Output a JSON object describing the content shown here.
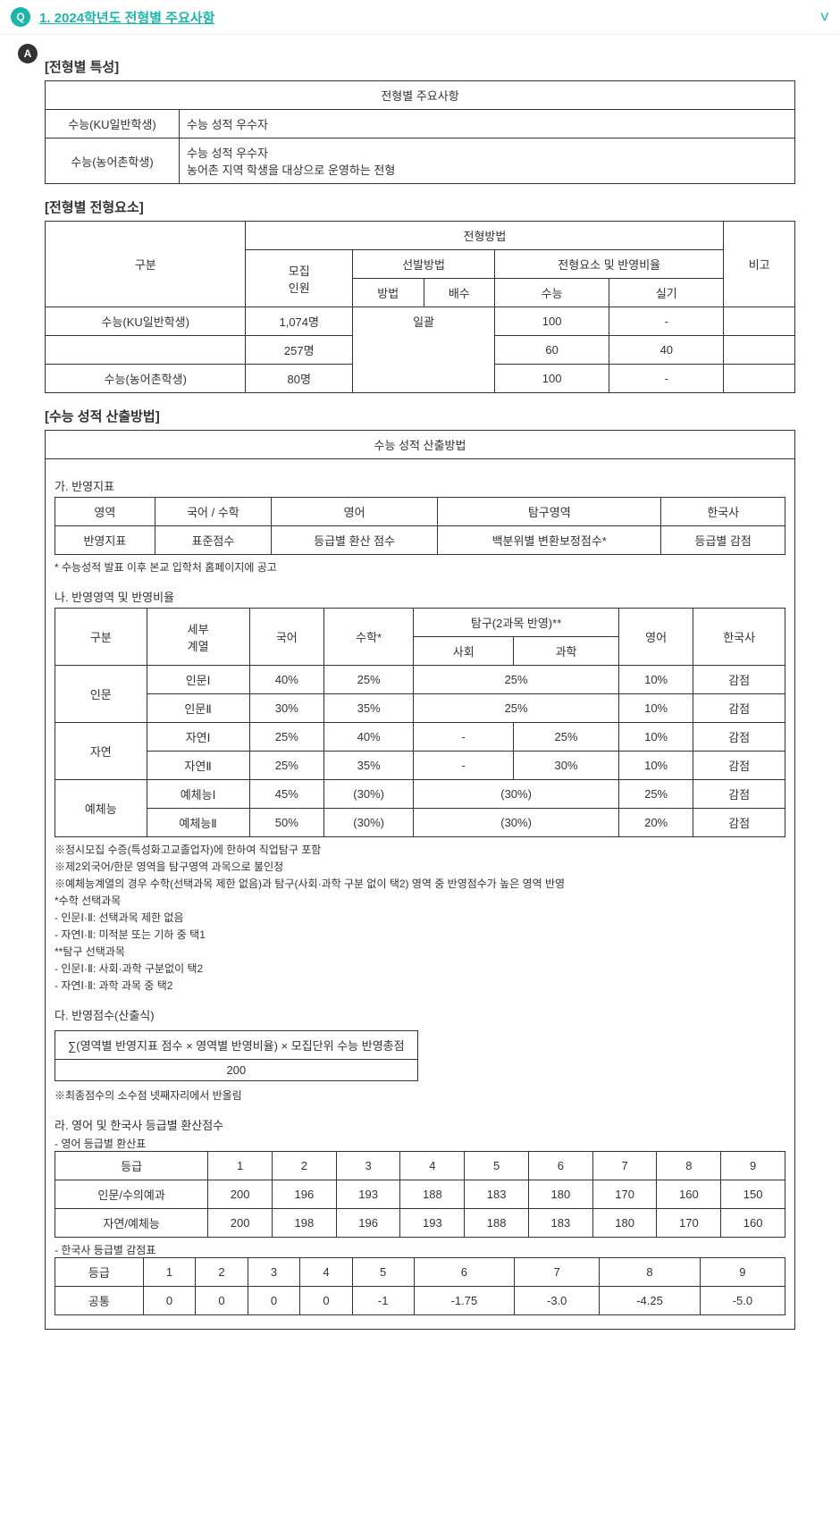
{
  "header": {
    "q_badge": "Q",
    "title": "1. 2024학년도 전형별 주요사항",
    "chev": "˅"
  },
  "a_badge": "A",
  "sec1": {
    "title": "[전형별 특성]",
    "caption": "전형별 주요사항",
    "rows": [
      {
        "k": "수능(KU일반학생)",
        "v": "수능 성적 우수자"
      },
      {
        "k": "수능(농어촌학생)",
        "v": "수능 성적 우수자\n농어촌 지역 학생을 대상으로 운영하는 전형"
      }
    ]
  },
  "sec2": {
    "title": "[전형별 전형요소]",
    "h": {
      "gubun": "구분",
      "method": "전형방법",
      "bigo": "비고",
      "mojip": "모집\n인원",
      "sel": "선발방법",
      "ratio": "전형요소 및 반영비율",
      "bangbeop": "방법",
      "baesu": "배수",
      "suneung": "수능",
      "silgi": "실기"
    },
    "rows": [
      {
        "g": "수능(KU일반학생)",
        "m": "1,074명",
        "b": "일괄",
        "s": "100",
        "sk": "-",
        "bi": ""
      },
      {
        "g": "",
        "m": "257명",
        "b": "",
        "s": "60",
        "sk": "40",
        "bi": ""
      },
      {
        "g": "수능(농어촌학생)",
        "m": "80명",
        "b": "",
        "s": "100",
        "sk": "-",
        "bi": ""
      }
    ]
  },
  "sec3": {
    "title": "[수능 성적 산출방법]",
    "caption": "수능 성적 산출방법",
    "ga_title": "가. 반영지표",
    "ga_h": {
      "area": "영역",
      "kor_math": "국어 / 수학",
      "eng": "영어",
      "tamgu": "탐구영역",
      "hist": "한국사"
    },
    "ga_r": {
      "lbl": "반영지표",
      "kor_math": "표준점수",
      "eng": "등급별 환산 점수",
      "tamgu": "백분위별 변환보정점수*",
      "hist": "등급별 감점"
    },
    "ga_note": "* 수능성적 발표 이후 본교 입학처 홈페이지에 공고",
    "na_title": "나. 반영영역 및 반영비율",
    "na_h": {
      "gubun": "구분",
      "sebu": "세부\n계열",
      "kor": "국어",
      "math": "수학*",
      "tamgu": "탐구(2과목 반영)**",
      "sahoe": "사회",
      "gwahak": "과학",
      "eng": "영어",
      "hist": "한국사"
    },
    "na_rows": [
      {
        "g": "인문",
        "s": "인문Ⅰ",
        "kor": "40%",
        "math": "25%",
        "sa": "25%",
        "gw": "",
        "eng": "10%",
        "hist": "감점",
        "merge_tamgu": true
      },
      {
        "g": "",
        "s": "인문Ⅱ",
        "kor": "30%",
        "math": "35%",
        "sa": "25%",
        "gw": "",
        "eng": "10%",
        "hist": "감점",
        "merge_tamgu": true
      },
      {
        "g": "자연",
        "s": "자연Ⅰ",
        "kor": "25%",
        "math": "40%",
        "sa": "-",
        "gw": "25%",
        "eng": "10%",
        "hist": "감점",
        "merge_tamgu": false
      },
      {
        "g": "",
        "s": "자연Ⅱ",
        "kor": "25%",
        "math": "35%",
        "sa": "-",
        "gw": "30%",
        "eng": "10%",
        "hist": "감점",
        "merge_tamgu": false
      },
      {
        "g": "예체능",
        "s": "예체능Ⅰ",
        "kor": "45%",
        "math": "(30%)",
        "sa": "(30%)",
        "gw": "",
        "eng": "25%",
        "hist": "감점",
        "merge_tamgu": true
      },
      {
        "g": "",
        "s": "예체능Ⅱ",
        "kor": "50%",
        "math": "(30%)",
        "sa": "(30%)",
        "gw": "",
        "eng": "20%",
        "hist": "감점",
        "merge_tamgu": true
      }
    ],
    "na_notes": [
      "※정시모집 수증(특성화고교졸업자)에 한하여 직업탐구 포함",
      "※제2외국어/한문 영역을 탐구영역 과목으로 불인정",
      "※예체능계열의 경우 수학(선택과목 제한 없음)과 탐구(사회·과학 구분 없이 택2) 영역 중 반영점수가 높은 영역 반영",
      "*수학 선택과목",
      "- 인문Ⅰ·Ⅱ: 선택과목 제한 없음",
      "- 자연Ⅰ·Ⅱ: 미적분 또는 기하 중 택1",
      "**탐구 선택과목",
      "- 인문Ⅰ·Ⅱ: 사회·과학 구분없이 택2",
      "- 자연Ⅰ·Ⅱ: 과학 과목 중 택2"
    ],
    "da_title": "다. 반영점수(산출식)",
    "da_formula_top": "∑(영역별 반영지표 점수 × 영역별 반영비율) × 모집단위 수능 반영총점",
    "da_formula_bot": "200",
    "da_note": "※최종점수의 소수점 넷째자리에서 반올림",
    "ra_title": "라. 영어 및 한국사 등급별 환산점수",
    "ra_sub1": "- 영어 등급별 환산표",
    "eng_h": {
      "grade": "등급",
      "g1": "1",
      "g2": "2",
      "g3": "3",
      "g4": "4",
      "g5": "5",
      "g6": "6",
      "g7": "7",
      "g8": "8",
      "g9": "9"
    },
    "eng_rows": [
      {
        "lbl": "인문/수의예과",
        "v": [
          "200",
          "196",
          "193",
          "188",
          "183",
          "180",
          "170",
          "160",
          "150"
        ]
      },
      {
        "lbl": "자연/예체능",
        "v": [
          "200",
          "198",
          "196",
          "193",
          "188",
          "183",
          "180",
          "170",
          "160"
        ]
      }
    ],
    "ra_sub2": "- 한국사 등급별 감점표",
    "hist_row": {
      "lbl": "공통",
      "v": [
        "0",
        "0",
        "0",
        "0",
        "-1",
        "-1.75",
        "-3.0",
        "-4.25",
        "-5.0"
      ]
    }
  }
}
